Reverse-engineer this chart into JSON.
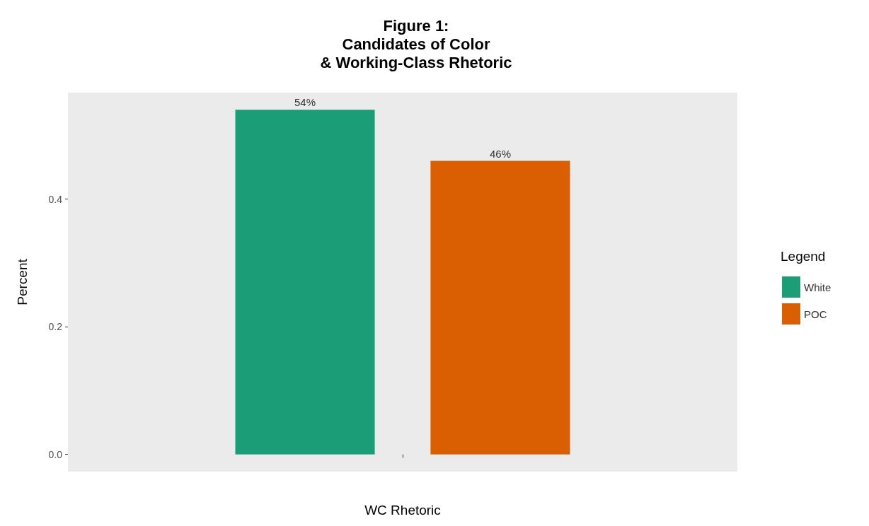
{
  "chart_data": {
    "type": "bar",
    "title": "Figure 1:\nCandidates of Color\n& Working-Class Rhetoric",
    "xlabel": "WC Rhetoric",
    "ylabel": "Percent",
    "legend_title": "Legend",
    "categories": [
      null
    ],
    "series": [
      {
        "name": "White",
        "color": "#1b9e77",
        "values": [
          0.54
        ],
        "value_labels": [
          "54%"
        ]
      },
      {
        "name": "POC",
        "color": "#d95f02",
        "values": [
          0.46
        ],
        "value_labels": [
          "46%"
        ]
      }
    ],
    "ylim": [
      -0.027,
      0.567
    ],
    "yticks": [
      {
        "value": 0,
        "label": "0.0"
      },
      {
        "value": 0.2,
        "label": "0.2"
      },
      {
        "value": 0.4,
        "label": "0.4"
      }
    ],
    "grid": false,
    "legend": "right"
  }
}
